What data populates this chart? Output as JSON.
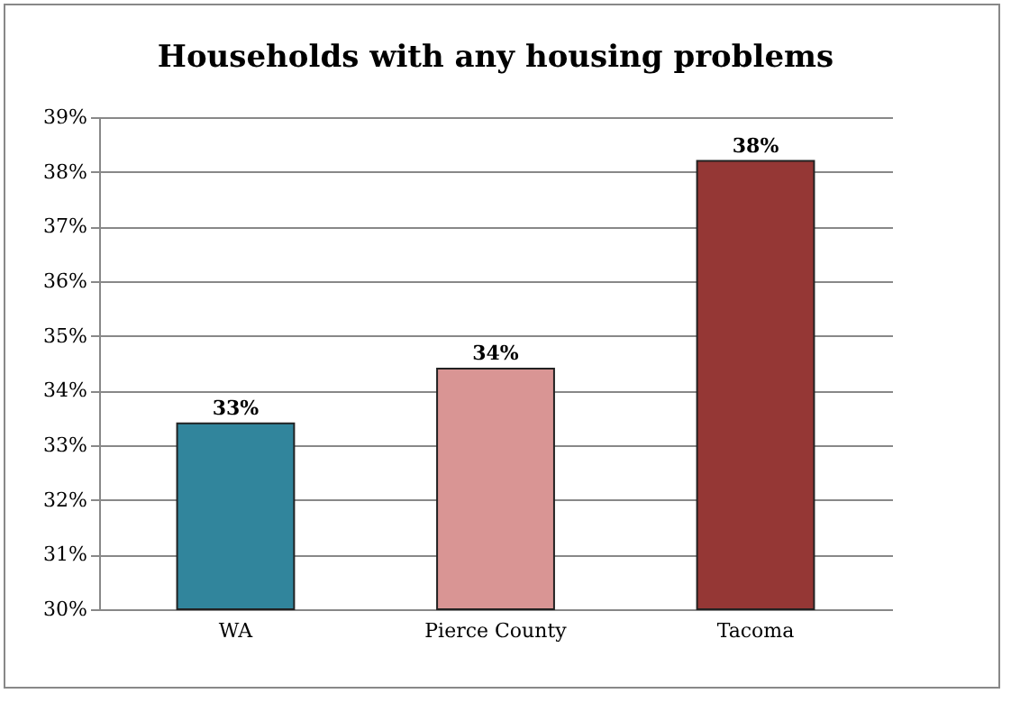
{
  "chart_data": {
    "type": "bar",
    "title": "Households with any housing problems",
    "categories": [
      "WA",
      "Pierce County",
      "Tacoma"
    ],
    "values": [
      33.4,
      34.4,
      38.2
    ],
    "colors": [
      "#31859c",
      "#d99594",
      "#953735"
    ],
    "value_labels": [
      "33%",
      "34%",
      "38%"
    ],
    "ylim": [
      30,
      39
    ],
    "yticks": [
      {
        "value": 30,
        "label": "30%"
      },
      {
        "value": 31,
        "label": "31%"
      },
      {
        "value": 32,
        "label": "32%"
      },
      {
        "value": 33,
        "label": "33%"
      },
      {
        "value": 34,
        "label": "34%"
      },
      {
        "value": 35,
        "label": "35%"
      },
      {
        "value": 36,
        "label": "36%"
      },
      {
        "value": 37,
        "label": "37%"
      },
      {
        "value": 38,
        "label": "38%"
      },
      {
        "value": 39,
        "label": "39%"
      }
    ],
    "grid": "y"
  }
}
